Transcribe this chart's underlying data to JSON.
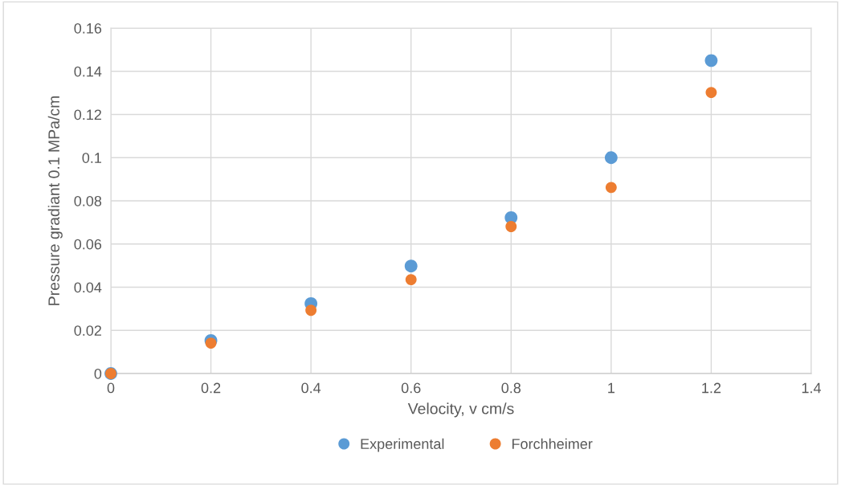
{
  "chart_data": {
    "type": "scatter",
    "xlabel": "Velocity, v cm/s",
    "ylabel": "Pressure gradiant 0.1 MPa/cm",
    "x": [
      0,
      0.2,
      0.4,
      0.6,
      0.8,
      1,
      1.2
    ],
    "series": [
      {
        "name": "Experimental",
        "color": "#5b9bd5",
        "values": [
          0,
          0.0153,
          0.0324,
          0.0498,
          0.0722,
          0.1,
          0.145
        ]
      },
      {
        "name": "Forchheimer",
        "color": "#ed7d31",
        "values": [
          0,
          0.0141,
          0.0293,
          0.0435,
          0.0681,
          0.0862,
          0.1302
        ]
      }
    ],
    "xlim": [
      0,
      1.4
    ],
    "xticks": [
      0,
      0.2,
      0.4,
      0.6,
      0.8,
      1,
      1.2,
      1.4
    ],
    "ylim": [
      0,
      0.16
    ],
    "yticks": [
      0,
      0.02,
      0.04,
      0.06,
      0.08,
      0.1,
      0.12,
      0.14,
      0.16
    ],
    "grid": true,
    "legend": "bottom",
    "marker": "circle"
  }
}
